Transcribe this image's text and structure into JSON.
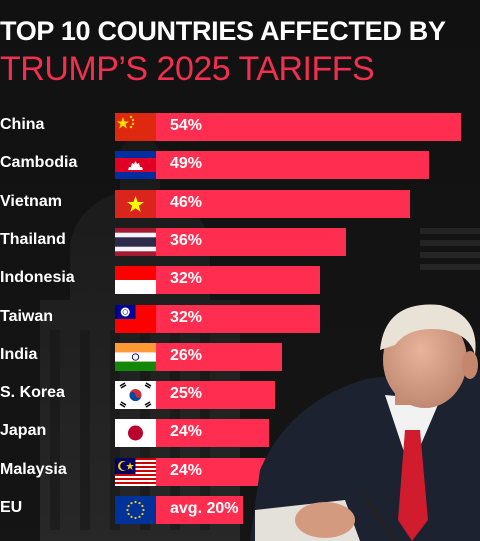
{
  "header": {
    "line1": "TOP 10 COUNTRIES AFFECTED BY",
    "line2": "TRUMP’S 2025 TARIFFS"
  },
  "colors": {
    "accent": "#ff2d4f",
    "background": "#141414",
    "title2": "#f0304e"
  },
  "chart_data": {
    "type": "bar",
    "orientation": "horizontal",
    "categories": [
      "China",
      "Cambodia",
      "Vietnam",
      "Thailand",
      "Indonesia",
      "Taiwan",
      "India",
      "S. Korea",
      "Japan",
      "Malaysia",
      "EU"
    ],
    "values": [
      54,
      49,
      46,
      36,
      32,
      32,
      26,
      25,
      24,
      24,
      20
    ],
    "value_labels": [
      "54%",
      "49%",
      "46%",
      "36%",
      "32%",
      "32%",
      "26%",
      "25%",
      "24%",
      "24%",
      "avg. 20%"
    ],
    "flags": [
      "china-flag",
      "cambodia-flag",
      "vietnam-flag",
      "thailand-flag",
      "indonesia-flag",
      "taiwan-flag",
      "india-flag",
      "south-korea-flag",
      "japan-flag",
      "malaysia-flag",
      "eu-flag"
    ],
    "title": "TOP 10 COUNTRIES AFFECTED BY TRUMP’S 2025 TARIFFS",
    "xlim": [
      0,
      54
    ]
  }
}
